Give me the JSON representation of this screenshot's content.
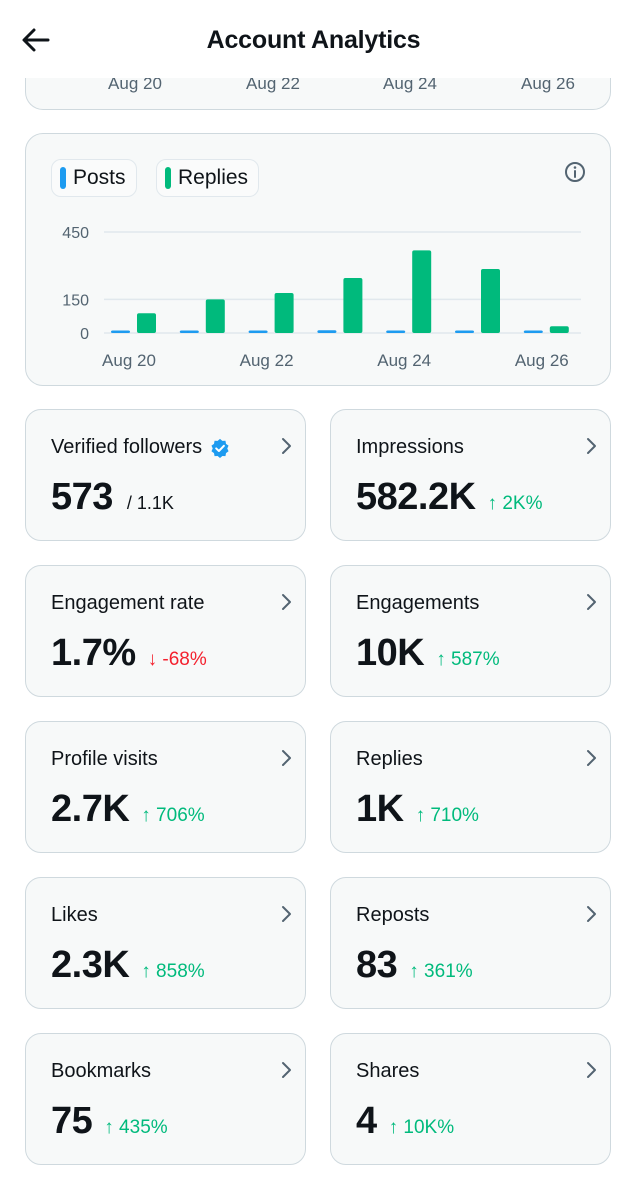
{
  "header": {
    "title": "Account Analytics"
  },
  "top_chart": {
    "x_labels": [
      "Aug 20",
      "Aug 22",
      "Aug 24",
      "Aug 26"
    ]
  },
  "legend": {
    "posts": "Posts",
    "replies": "Replies"
  },
  "colors": {
    "posts": "#1d9bf0",
    "replies": "#00ba7c",
    "up": "#00ba7c",
    "down": "#f4212e",
    "verified": "#1d9bf0"
  },
  "chart_data": {
    "type": "bar",
    "categories": [
      "Aug 20",
      "Aug 21",
      "Aug 22",
      "Aug 23",
      "Aug 24",
      "Aug 25",
      "Aug 26"
    ],
    "x_tick_labels": [
      "Aug 20",
      "Aug 22",
      "Aug 24",
      "Aug 26"
    ],
    "y_ticks": [
      "450",
      "150",
      "0"
    ],
    "ylim": [
      0,
      450
    ],
    "grid": true,
    "legend_position": "top-left",
    "series": [
      {
        "name": "Posts",
        "values": [
          10,
          5,
          4,
          12,
          10,
          6,
          2
        ]
      },
      {
        "name": "Replies",
        "values": [
          88,
          150,
          178,
          245,
          368,
          285,
          30
        ]
      }
    ]
  },
  "stats": [
    {
      "id": "verified-followers",
      "label": "Verified followers",
      "value": "573",
      "sub": "/ 1.1K",
      "verified": true
    },
    {
      "id": "impressions",
      "label": "Impressions",
      "value": "582.2K",
      "change": "↑ 2K%",
      "dir": "up"
    },
    {
      "id": "engagement-rate",
      "label": "Engagement rate",
      "value": "1.7%",
      "change": "↓ -68%",
      "dir": "down"
    },
    {
      "id": "engagements",
      "label": "Engagements",
      "value": "10K",
      "change": "↑ 587%",
      "dir": "up"
    },
    {
      "id": "profile-visits",
      "label": "Profile visits",
      "value": "2.7K",
      "change": "↑ 706%",
      "dir": "up"
    },
    {
      "id": "replies",
      "label": "Replies",
      "value": "1K",
      "change": "↑ 710%",
      "dir": "up"
    },
    {
      "id": "likes",
      "label": "Likes",
      "value": "2.3K",
      "change": "↑ 858%",
      "dir": "up"
    },
    {
      "id": "reposts",
      "label": "Reposts",
      "value": "83",
      "change": "↑ 361%",
      "dir": "up"
    },
    {
      "id": "bookmarks",
      "label": "Bookmarks",
      "value": "75",
      "change": "↑ 435%",
      "dir": "up"
    },
    {
      "id": "shares",
      "label": "Shares",
      "value": "4",
      "change": "↑ 10K%",
      "dir": "up"
    }
  ]
}
